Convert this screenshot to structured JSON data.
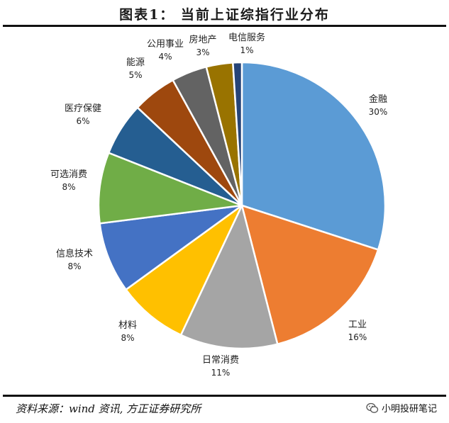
{
  "header": {
    "title": "图表1：   当前上证综指行业分布"
  },
  "footer": {
    "source": "资料来源：wind 资讯, 方正证券研究所",
    "watermark": "小明投研笔记",
    "watermark_icon": "wechat-icon"
  },
  "chart_data": {
    "type": "pie",
    "title": "图表1：   当前上证综指行业分布",
    "start_angle": "12 o'clock, clockwise",
    "slices": [
      {
        "label": "金融",
        "pct_label": "30%",
        "value": 30,
        "color": "#5B9BD5"
      },
      {
        "label": "工业",
        "pct_label": "16%",
        "value": 16,
        "color": "#ED7D31"
      },
      {
        "label": "日常消费",
        "pct_label": "11%",
        "value": 11,
        "color": "#A5A5A5"
      },
      {
        "label": "材料",
        "pct_label": "8%",
        "value": 8,
        "color": "#FFC000"
      },
      {
        "label": "信息技术",
        "pct_label": "8%",
        "value": 8,
        "color": "#4472C4"
      },
      {
        "label": "可选消费",
        "pct_label": "8%",
        "value": 8,
        "color": "#70AD47"
      },
      {
        "label": "医疗保健",
        "pct_label": "6%",
        "value": 6,
        "color": "#255E91"
      },
      {
        "label": "能源",
        "pct_label": "5%",
        "value": 5,
        "color": "#9E480E"
      },
      {
        "label": "公用事业",
        "pct_label": "4%",
        "value": 4,
        "color": "#636363"
      },
      {
        "label": "房地产",
        "pct_label": "3%",
        "value": 3,
        "color": "#997300"
      },
      {
        "label": "电信服务",
        "pct_label": "1%",
        "value": 1,
        "color": "#264478"
      }
    ]
  }
}
